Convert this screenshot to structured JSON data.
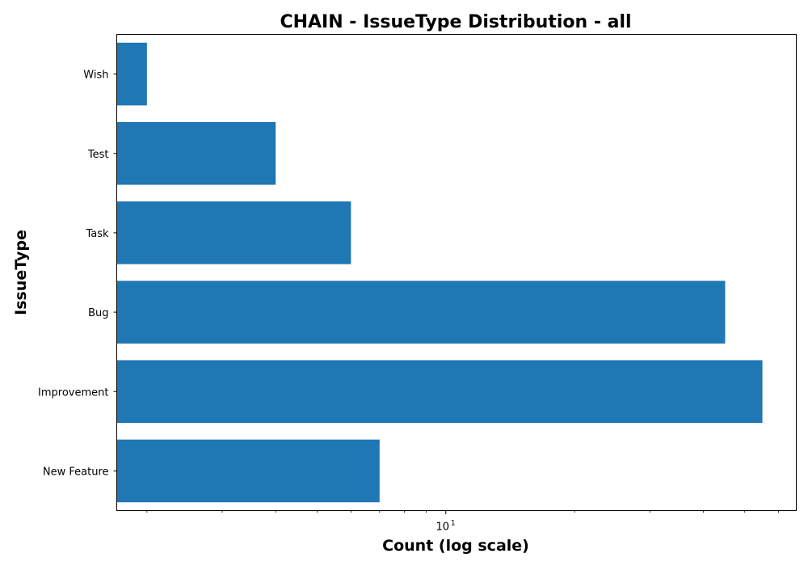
{
  "chart_data": {
    "type": "bar",
    "orientation": "horizontal",
    "title": "CHAIN - IssueType Distribution - all",
    "xlabel": "Count (log scale)",
    "ylabel": "IssueType",
    "xscale": "log",
    "xlim": [
      1.7,
      66
    ],
    "xticks": [
      {
        "value": 10,
        "base": "10",
        "exponent": "1"
      }
    ],
    "categories": [
      "New Feature",
      "Improvement",
      "Bug",
      "Task",
      "Test",
      "Wish"
    ],
    "values": [
      7,
      55,
      45,
      6,
      4,
      2
    ],
    "bar_color": "#1f77b4",
    "grid": false,
    "legend": "none"
  }
}
